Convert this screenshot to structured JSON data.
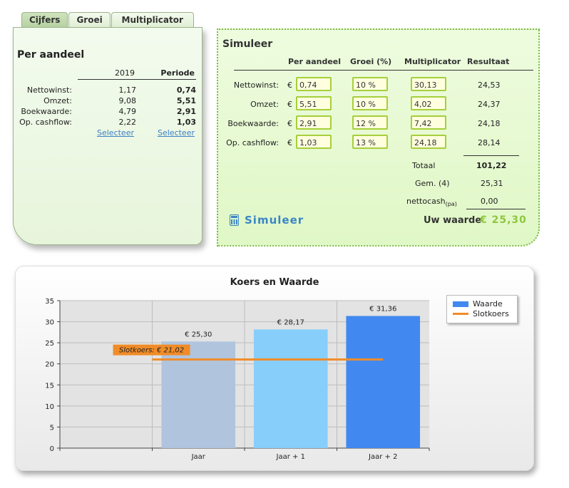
{
  "tabs": [
    {
      "label": "Cijfers",
      "active": true
    },
    {
      "label": "Groei",
      "active": false
    },
    {
      "label": "Multiplicator",
      "active": false
    }
  ],
  "per_aandeel": {
    "title": "Per aandeel",
    "col1": "2019",
    "col2": "Periode",
    "rows": [
      {
        "label": "Nettowinst:",
        "v1": "1,17",
        "v2": "0,74"
      },
      {
        "label": "Omzet:",
        "v1": "9,08",
        "v2": "5,51"
      },
      {
        "label": "Boekwaarde:",
        "v1": "4,79",
        "v2": "2,91"
      },
      {
        "label": "Op. cashflow:",
        "v1": "2,22",
        "v2": "1,03"
      }
    ],
    "select1": "Selecteer",
    "select2": "Selecteer"
  },
  "simuleer": {
    "title": "Simuleer",
    "headers": {
      "per_aandeel": "Per aandeel",
      "groei": "Groei (%)",
      "multiplicator": "Multiplicator",
      "resultaat": "Resultaat"
    },
    "currency": "€",
    "rows": [
      {
        "label": "Nettowinst:",
        "per_aandeel": "0,74",
        "groei": "10 %",
        "multiplicator": "30,13",
        "resultaat": "24,53"
      },
      {
        "label": "Omzet:",
        "per_aandeel": "5,51",
        "groei": "10 %",
        "multiplicator": "4,02",
        "resultaat": "24,37"
      },
      {
        "label": "Boekwaarde:",
        "per_aandeel": "2,91",
        "groei": "12 %",
        "multiplicator": "7,42",
        "resultaat": "24,18"
      },
      {
        "label": "Op. cashflow:",
        "per_aandeel": "1,03",
        "groei": "13 %",
        "multiplicator": "24,18",
        "resultaat": "28,14"
      }
    ],
    "totaal_label": "Totaal",
    "totaal": "101,22",
    "gem_label": "Gem. (4)",
    "gem": "25,31",
    "nettocash_label": "nettocash",
    "nettocash_sub": "(pa)",
    "nettocash": "0,00",
    "button": "Simuleer",
    "uw_waarde_label": "Uw waarde",
    "uw_waarde": "€ 25,30"
  },
  "chart_data": {
    "type": "bar",
    "title": "Koers en Waarde",
    "categories": [
      "",
      "Jaar",
      "Jaar + 1",
      "Jaar + 2"
    ],
    "series": [
      {
        "name": "Waarde",
        "values": [
          null,
          25.3,
          28.17,
          31.36
        ],
        "labels": [
          "",
          "€ 25,30",
          "€ 28,17",
          "€ 31,36"
        ]
      },
      {
        "name": "Slotkoers",
        "type": "line",
        "value": 21.02,
        "label": "Slotkoers: € 21,02"
      }
    ],
    "bar_colors": [
      "#b0c4de",
      "#87cefa",
      "#4189f0"
    ],
    "line_color": "#f08c28",
    "ylim": [
      0,
      35
    ],
    "yticks": [
      0,
      5,
      10,
      15,
      20,
      25,
      30,
      35
    ],
    "grid": true,
    "legend": "top-right"
  }
}
